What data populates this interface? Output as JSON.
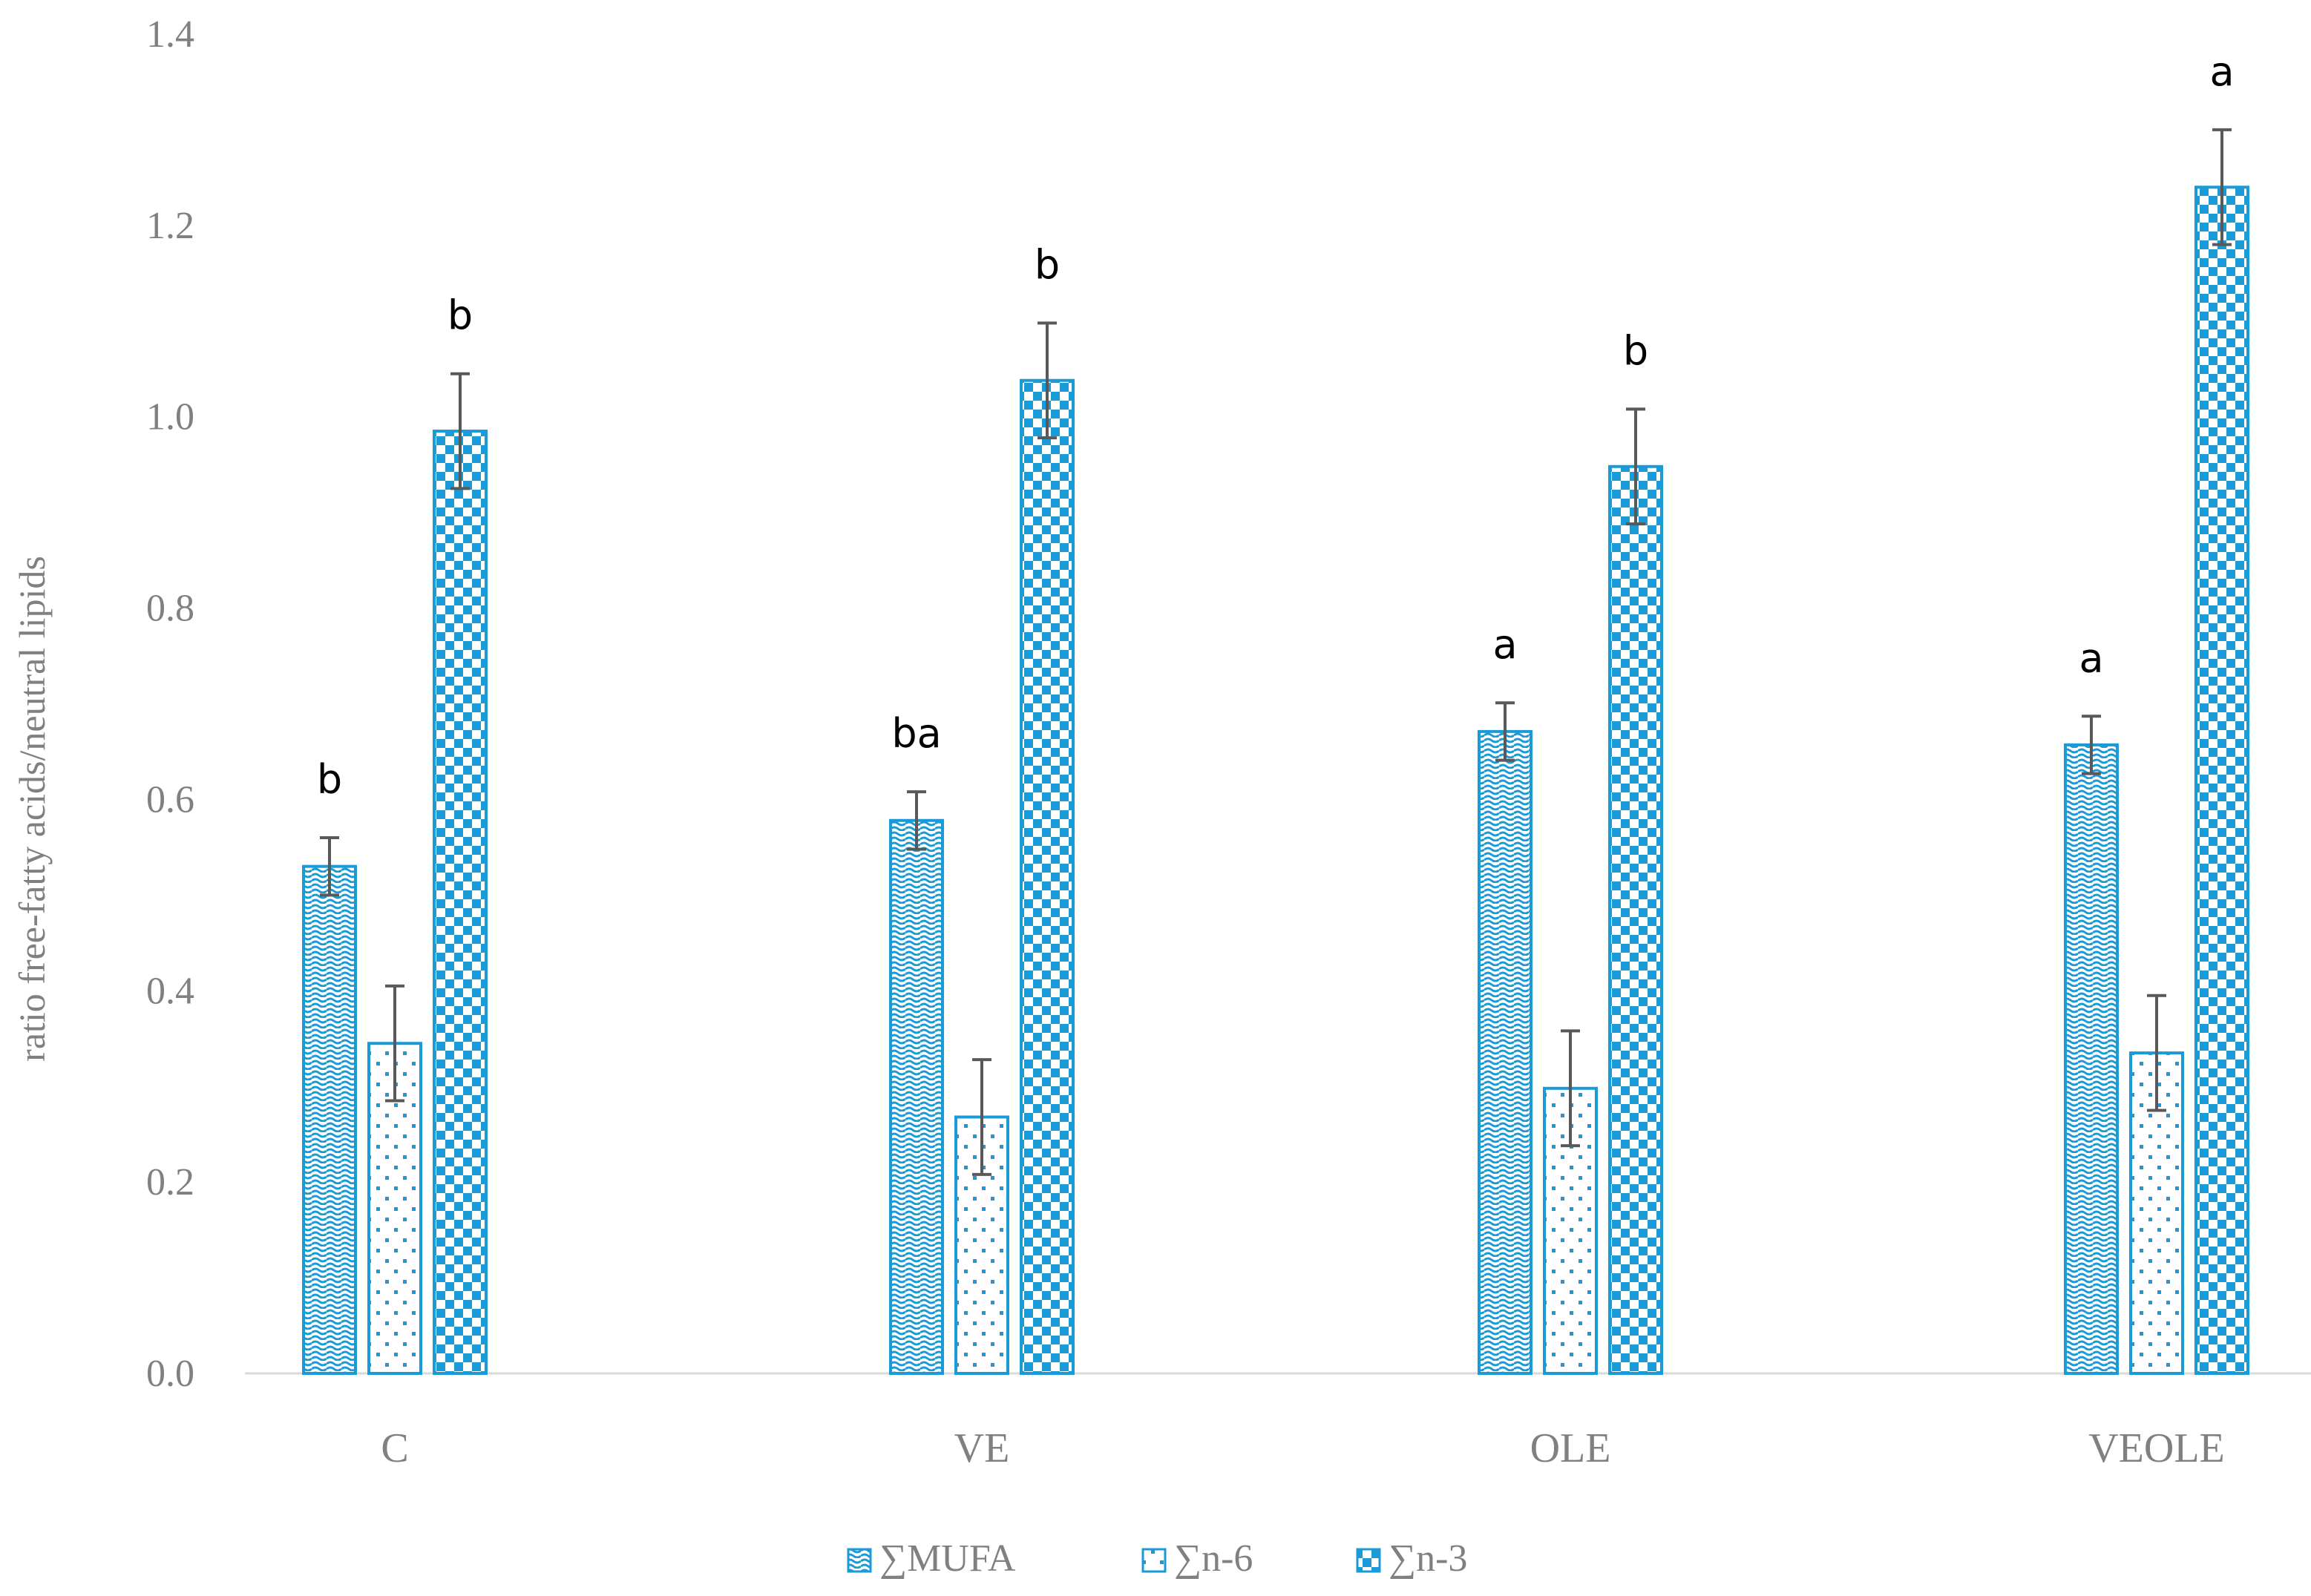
{
  "chart_data": {
    "type": "bar",
    "ylabel": "ratio free-fatty acids/neutral lipids",
    "xlabel": "",
    "ylim": [
      0,
      1.4
    ],
    "yticks": [
      "0.0",
      "0.2",
      "0.4",
      "0.6",
      "0.8",
      "1.0",
      "1.2",
      "1.4"
    ],
    "grid": false,
    "legend_position": "bottom",
    "categories": [
      "C",
      "VE",
      "OLE",
      "VEOLE"
    ],
    "series": [
      {
        "name": "∑MUFA",
        "pattern": "wave",
        "values": [
          0.53,
          0.578,
          0.671,
          0.657
        ],
        "errors": [
          0.03,
          0.03,
          0.03,
          0.03
        ],
        "significance": [
          "b",
          "ba",
          "a",
          "a"
        ]
      },
      {
        "name": "∑n-6",
        "pattern": "dots",
        "values": [
          0.345,
          0.268,
          0.298,
          0.335
        ],
        "errors": [
          0.06,
          0.06,
          0.06,
          0.06
        ],
        "significance": [
          "",
          "",
          "",
          ""
        ]
      },
      {
        "name": "∑n-3",
        "pattern": "checker",
        "values": [
          0.985,
          1.038,
          0.948,
          1.24
        ],
        "errors": [
          0.06,
          0.06,
          0.06,
          0.06
        ],
        "significance": [
          "b",
          "b",
          "b",
          "a"
        ]
      }
    ],
    "colors": {
      "bar": "#1a9bd7",
      "error": "#595959",
      "axis": "#d9d9d9",
      "tick_text": "#808080",
      "sig_text": "#000000"
    }
  }
}
